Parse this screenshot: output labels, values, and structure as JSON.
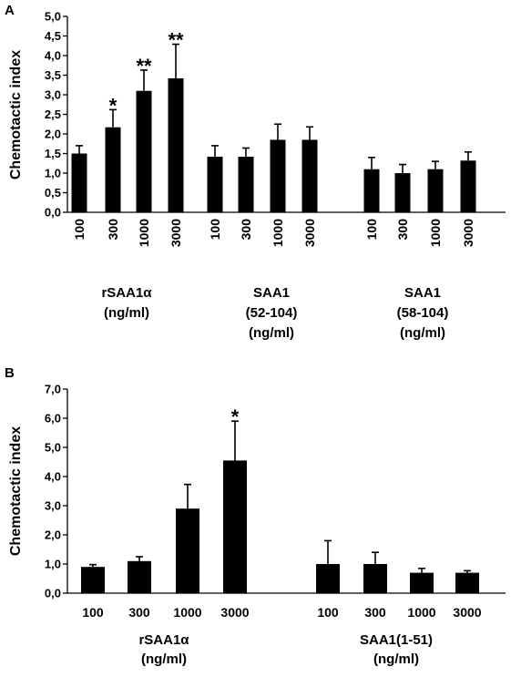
{
  "chart_data": [
    {
      "type": "bar",
      "panel": "A",
      "ylabel": "Chemotactic index",
      "ylim": [
        0,
        5
      ],
      "yticks": [
        "0,0",
        "0,5",
        "1,0",
        "1,5",
        "2,0",
        "2,5",
        "3,0",
        "3,5",
        "4,0",
        "4,5",
        "5,0"
      ],
      "groups": [
        {
          "label_lines": [
            "rSAA1α",
            "(ng/ml)"
          ],
          "categories": [
            "100",
            "300",
            "1000",
            "3000"
          ],
          "values": [
            1.5,
            2.17,
            3.1,
            3.42
          ],
          "errors": [
            0.2,
            0.45,
            0.53,
            0.87
          ],
          "significance": [
            "",
            "*",
            "**",
            "**"
          ]
        },
        {
          "label_lines": [
            "SAA1",
            "(52-104)",
            "(ng/ml)"
          ],
          "categories": [
            "100",
            "300",
            "1000",
            "3000"
          ],
          "values": [
            1.42,
            1.42,
            1.85,
            1.85
          ],
          "errors": [
            0.28,
            0.22,
            0.4,
            0.33
          ],
          "significance": [
            "",
            "",
            "",
            ""
          ]
        },
        {
          "label_lines": [
            "SAA1",
            "(58-104)",
            "(ng/ml)"
          ],
          "categories": [
            "100",
            "300",
            "1000",
            "3000"
          ],
          "values": [
            1.1,
            1.0,
            1.1,
            1.32
          ],
          "errors": [
            0.3,
            0.22,
            0.2,
            0.22
          ],
          "significance": [
            "",
            "",
            "",
            ""
          ]
        }
      ]
    },
    {
      "type": "bar",
      "panel": "B",
      "ylabel": "Chemotactic index",
      "ylim": [
        0,
        7
      ],
      "yticks": [
        "0,0",
        "1,0",
        "2,0",
        "3,0",
        "4,0",
        "5,0",
        "6,0",
        "7,0"
      ],
      "groups": [
        {
          "label_lines": [
            "rSAA1α",
            "(ng/ml)"
          ],
          "categories": [
            "100",
            "300",
            "1000",
            "3000"
          ],
          "values": [
            0.9,
            1.1,
            2.9,
            4.55
          ],
          "errors": [
            0.08,
            0.15,
            0.83,
            1.35
          ],
          "significance": [
            "",
            "",
            "",
            "*"
          ]
        },
        {
          "label_lines": [
            "SAA1(1-51)",
            "(ng/ml)"
          ],
          "categories": [
            "100",
            "300",
            "1000",
            "3000"
          ],
          "values": [
            1.0,
            1.0,
            0.7,
            0.7
          ],
          "errors": [
            0.8,
            0.4,
            0.15,
            0.07
          ],
          "significance": [
            "",
            "",
            "",
            ""
          ]
        }
      ]
    }
  ],
  "colors": {
    "bar": "#000000",
    "axis": "#000000"
  }
}
